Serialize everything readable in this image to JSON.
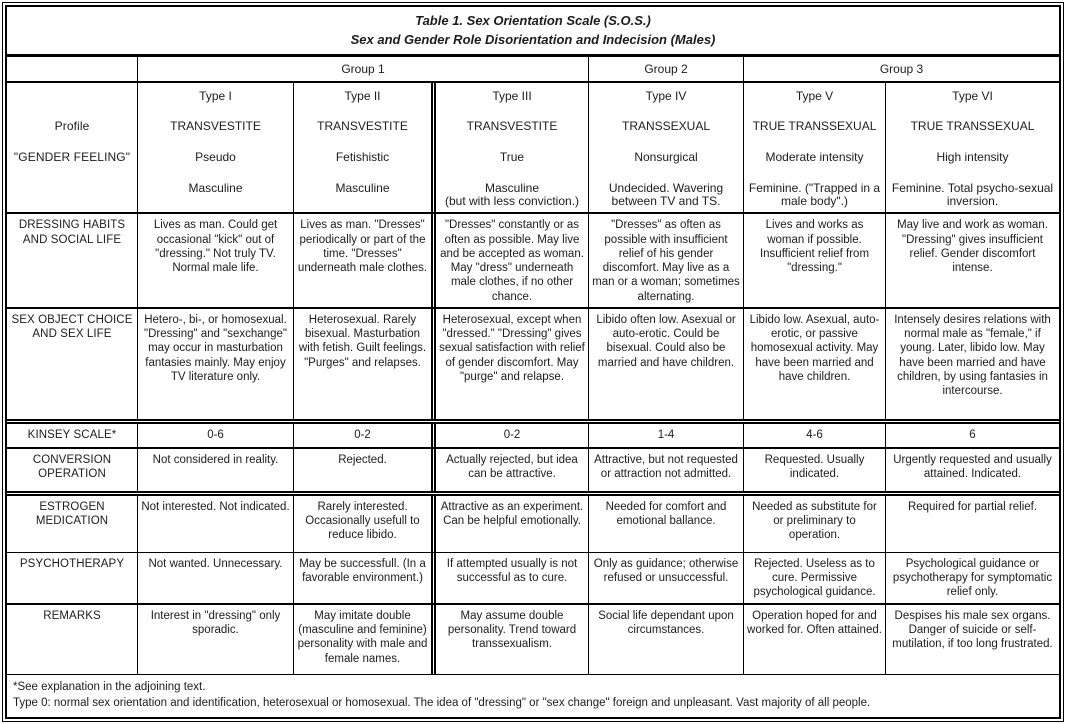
{
  "title": {
    "line1": "Table 1. Sex Orientation Scale (S.O.S.)",
    "line2": "Sex and Gender Role Disorientation and Indecision (Males)"
  },
  "groups": [
    {
      "label": "Group 1"
    },
    {
      "label": "Group 2"
    },
    {
      "label": "Group 3"
    }
  ],
  "profile_header": {
    "line1": "Profile",
    "line2": "\"GENDER FEELING\""
  },
  "types": [
    {
      "name": "Type I",
      "category": "TRANSVESTITE",
      "subtype": "Pseudo",
      "feeling": "Masculine"
    },
    {
      "name": "Type II",
      "category": "TRANSVESTITE",
      "subtype": "Fetishistic",
      "feeling": "Masculine"
    },
    {
      "name": "Type III",
      "category": "TRANSVESTITE",
      "subtype": "True",
      "feeling": "Masculine\n(but with less conviction.)"
    },
    {
      "name": "Type IV",
      "category": "TRANSSEXUAL",
      "subtype": "Nonsurgical",
      "feeling": "Undecided. Wavering between TV and TS."
    },
    {
      "name": "Type V",
      "category": "TRUE TRANSSEXUAL",
      "subtype": "Moderate intensity",
      "feeling": "Feminine. (\"Trapped in a male body\".)"
    },
    {
      "name": "Type VI",
      "category": "TRUE TRANSSEXUAL",
      "subtype": "High intensity",
      "feeling": "Feminine. Total psycho-sexual inversion."
    }
  ],
  "rows": [
    {
      "label": "DRESSING HABITS AND SOCIAL LIFE",
      "cells": [
        "Lives as man. Could get occasional \"kick\" out of \"dressing.\" Not truly TV. Normal male life.",
        "Lives as man. \"Dresses\" periodically or part of the time. \"Dresses\" underneath male clothes.",
        "\"Dresses\" constantly or as often as possible. May live and be accepted as woman. May \"dress\" underneath male clothes, if no other chance.",
        "\"Dresses\" as often as possible with insufficient relief of his gender discomfort. May live as a man or a woman; sometimes alternating.",
        "Lives and works as woman if possible. Insufficient relief from \"dressing.\"",
        "May live and work as woman. \"Dressing\" gives insufficient relief. Gender discomfort intense."
      ]
    },
    {
      "label": "SEX OBJECT CHOICE AND SEX LIFE",
      "cells": [
        "Hetero-, bi-, or homosexual. \"Dressing\" and \"sexchange\" may occur in masturbation fantasies mainly. May enjoy TV literature only.",
        "Heterosexual. Rarely bisexual. Masturbation with fetish. Guilt feelings. \"Purges\" and relapses.",
        "Heterosexual, except when \"dressed.\" \"Dressing\" gives sexual satisfaction with relief of gender discomfort. May \"purge\" and relapse.",
        "Libido often low. Asexual or auto-erotic. Could be bisexual. Could also be married and have children.",
        "Libido low. Asexual, auto-erotic, or passive homosexual activity. May have been married and have children.",
        "Intensely desires relations with normal male as \"female,\" if young. Later, libido low. May have been married and have children, by using fantasies in intercourse."
      ]
    },
    {
      "label": "KINSEY SCALE*",
      "cells": [
        "0-6",
        "0-2",
        "0-2",
        "1-4",
        "4-6",
        "6"
      ]
    },
    {
      "label": "CONVERSION OPERATION",
      "cells": [
        "Not considered in reality.",
        "Rejected.",
        "Actually rejected, but idea can be attractive.",
        "Attractive, but not requested or attraction not admitted.",
        "Requested. Usually indicated.",
        "Urgently requested and usually attained. Indicated."
      ]
    },
    {
      "label": "ESTROGEN MEDICATION",
      "cells": [
        "Not interested. Not indicated.",
        "Rarely interested. Occasionally usefull to reduce libido.",
        "Attractive as an experiment. Can be helpful emotionally.",
        "Needed for comfort and emotional ballance.",
        "Needed as substitute for or preliminary to operation.",
        "Required for partial relief."
      ]
    },
    {
      "label": "PSYCHOTHERAPY",
      "cells": [
        "Not wanted. Unnecessary.",
        "May be successfull. (In a favorable environment.)",
        "If attempted usually is not successful as to cure.",
        "Only as guidance; otherwise refused or unsuccessful.",
        "Rejected. Useless as to cure. Permissive psychological guidance.",
        "Psychological guidance or psychotherapy for symptomatic relief only."
      ]
    },
    {
      "label": "REMARKS",
      "cells": [
        "Interest in \"dressing\" only sporadic.",
        "May imitate double (masculine and feminine) personality with male and female names.",
        "May assume double personality. Trend toward transsexualism.",
        "Social life dependant upon circumstances.",
        "Operation hoped for and worked for. Often attained.",
        "Despises his male sex organs. Danger of suicide or self-mutilation, if too long frustrated."
      ]
    }
  ],
  "footnotes": {
    "line1": "*See explanation in the adjoining text.",
    "line2": "Type 0: normal sex orientation and identification, heterosexual or homosexual. The idea of \"dressing\" or \"sex change\" foreign and unpleasant. Vast majority of all people."
  }
}
